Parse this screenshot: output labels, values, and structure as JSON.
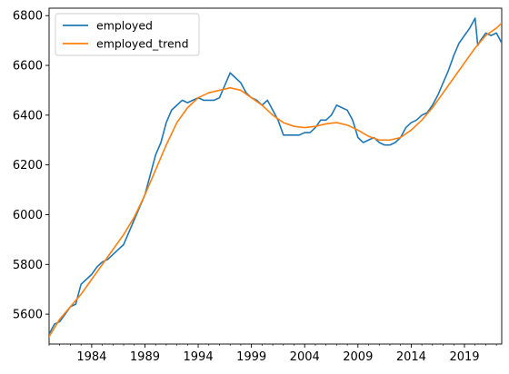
{
  "chart_data": {
    "type": "line",
    "title": "",
    "xlabel": "",
    "ylabel": "",
    "xlim": [
      1980.0,
      2022.5
    ],
    "ylim": [
      5480,
      6830
    ],
    "grid": false,
    "legend_placement": "top-left",
    "x_ticks": [
      1984,
      1989,
      1994,
      1999,
      2004,
      2009,
      2014,
      2019
    ],
    "x_tick_labels": [
      "1984",
      "1989",
      "1994",
      "1999",
      "2004",
      "2009",
      "2014",
      "2019"
    ],
    "y_ticks": [
      5600,
      5800,
      6000,
      6200,
      6400,
      6600,
      6800
    ],
    "y_tick_labels": [
      "5600",
      "5800",
      "6000",
      "6200",
      "6400",
      "6600",
      "6800"
    ],
    "series": [
      {
        "name": "employed",
        "color": "#1f77b4",
        "x": [
          1980.0,
          1980.5,
          1981.0,
          1981.5,
          1982.0,
          1982.5,
          1983.0,
          1983.5,
          1984.0,
          1984.5,
          1985.0,
          1985.5,
          1986.0,
          1986.5,
          1987.0,
          1987.5,
          1988.0,
          1988.5,
          1989.0,
          1989.5,
          1990.0,
          1990.5,
          1991.0,
          1991.5,
          1992.0,
          1992.5,
          1993.0,
          1993.5,
          1994.0,
          1994.5,
          1995.0,
          1995.5,
          1996.0,
          1996.5,
          1997.0,
          1997.5,
          1998.0,
          1998.5,
          1999.0,
          1999.5,
          2000.0,
          2000.5,
          2001.0,
          2001.5,
          2002.0,
          2002.5,
          2003.0,
          2003.5,
          2004.0,
          2004.5,
          2005.0,
          2005.5,
          2006.0,
          2006.5,
          2007.0,
          2007.5,
          2008.0,
          2008.5,
          2009.0,
          2009.5,
          2010.0,
          2010.5,
          2011.0,
          2011.5,
          2012.0,
          2012.5,
          2013.0,
          2013.5,
          2014.0,
          2014.5,
          2015.0,
          2015.5,
          2016.0,
          2016.5,
          2017.0,
          2017.5,
          2018.0,
          2018.5,
          2019.0,
          2019.5,
          2020.0,
          2020.25,
          2020.5,
          2021.0,
          2021.5,
          2022.0,
          2022.5
        ],
        "values": [
          5520,
          5560,
          5570,
          5600,
          5630,
          5640,
          5720,
          5740,
          5760,
          5790,
          5810,
          5820,
          5840,
          5860,
          5880,
          5930,
          5980,
          6030,
          6080,
          6160,
          6240,
          6290,
          6370,
          6420,
          6440,
          6460,
          6450,
          6460,
          6470,
          6460,
          6460,
          6460,
          6470,
          6520,
          6570,
          6550,
          6530,
          6490,
          6470,
          6460,
          6440,
          6460,
          6420,
          6380,
          6320,
          6320,
          6320,
          6320,
          6330,
          6330,
          6350,
          6380,
          6380,
          6400,
          6440,
          6430,
          6420,
          6380,
          6310,
          6290,
          6300,
          6310,
          6290,
          6280,
          6280,
          6290,
          6310,
          6350,
          6370,
          6380,
          6400,
          6410,
          6440,
          6480,
          6530,
          6580,
          6640,
          6690,
          6720,
          6750,
          6790,
          6680,
          6700,
          6730,
          6720,
          6730,
          6690
        ]
      },
      {
        "name": "employed_trend",
        "color": "#ff7f0e",
        "x": [
          1980.0,
          1981.0,
          1982.0,
          1983.0,
          1984.0,
          1985.0,
          1986.0,
          1987.0,
          1988.0,
          1989.0,
          1990.0,
          1991.0,
          1992.0,
          1993.0,
          1994.0,
          1995.0,
          1996.0,
          1997.0,
          1998.0,
          1999.0,
          2000.0,
          2001.0,
          2002.0,
          2003.0,
          2004.0,
          2005.0,
          2006.0,
          2007.0,
          2008.0,
          2009.0,
          2010.0,
          2011.0,
          2012.0,
          2013.0,
          2014.0,
          2015.0,
          2016.0,
          2017.0,
          2018.0,
          2019.0,
          2020.0,
          2021.0,
          2022.0,
          2022.5
        ],
        "values": [
          5510,
          5580,
          5630,
          5680,
          5740,
          5800,
          5860,
          5920,
          5990,
          6080,
          6180,
          6280,
          6370,
          6430,
          6470,
          6490,
          6500,
          6510,
          6500,
          6470,
          6440,
          6400,
          6370,
          6355,
          6350,
          6355,
          6365,
          6370,
          6360,
          6340,
          6315,
          6300,
          6300,
          6310,
          6340,
          6380,
          6430,
          6490,
          6550,
          6610,
          6670,
          6720,
          6750,
          6770
        ]
      }
    ]
  }
}
